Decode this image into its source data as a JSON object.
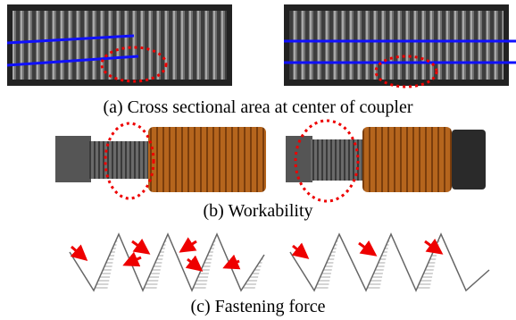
{
  "captions": [
    "(a) Cross sectional area at center of coupler",
    "(b) Workability",
    "(c) Fastening force"
  ]
}
